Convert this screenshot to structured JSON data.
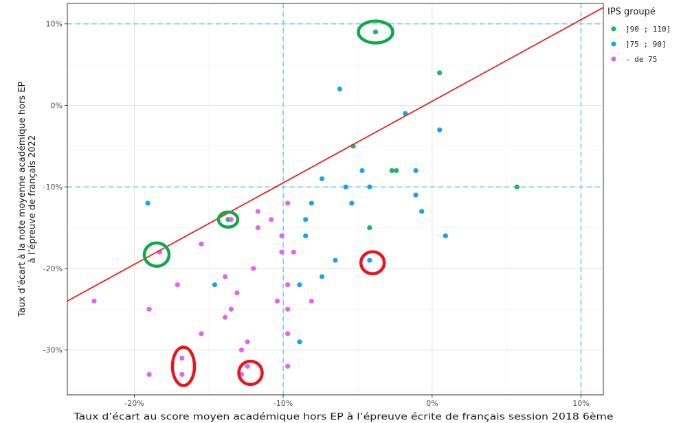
{
  "chart_data": {
    "type": "scatter",
    "xlabel": "Taux d’écart au score moyen académique hors EP à l’épreuve écrite de français session 2018 6ème",
    "ylabel_lines": [
      "Taux d’écart à la note moyenne académique hors EP",
      "à l’épreuve de français 2022"
    ],
    "xlim": [
      -0.245,
      0.115
    ],
    "ylim": [
      -0.355,
      0.125
    ],
    "x_ticks": [
      {
        "value": -0.2,
        "label": "-20%"
      },
      {
        "value": -0.1,
        "label": "-10%"
      },
      {
        "value": 0.0,
        "label": "0%"
      },
      {
        "value": 0.1,
        "label": "10%"
      }
    ],
    "y_ticks": [
      {
        "value": 0.1,
        "label": "10%"
      },
      {
        "value": 0.0,
        "label": "0%"
      },
      {
        "value": -0.1,
        "label": "-10%"
      },
      {
        "value": -0.2,
        "label": "-20%"
      },
      {
        "value": -0.3,
        "label": "-30%"
      }
    ],
    "grid": true,
    "reference_lines": {
      "x": [
        -0.1,
        0.1
      ],
      "y": [
        -0.1,
        0.1
      ],
      "color": "#7fc8f8",
      "style": "dashed"
    },
    "regression_line": {
      "slope": 1.0,
      "intercept": 0.005,
      "color": "#ee1c1c"
    },
    "legend": {
      "title": "IPS groupé",
      "position": "top-right"
    },
    "series": [
      {
        "name": "]90 ; 110]",
        "color": "#1fb46e",
        "points": [
          [
            -0.038,
            0.09
          ],
          [
            0.005,
            0.04
          ],
          [
            -0.053,
            -0.05
          ],
          [
            -0.027,
            -0.08
          ],
          [
            -0.024,
            -0.08
          ],
          [
            0.057,
            -0.1
          ],
          [
            -0.042,
            -0.15
          ],
          [
            -0.137,
            -0.14
          ]
        ]
      },
      {
        "name": "]75 ; 90]",
        "color": "#1aa3ec",
        "points": [
          [
            -0.062,
            0.02
          ],
          [
            -0.018,
            -0.01
          ],
          [
            0.005,
            -0.03
          ],
          [
            -0.047,
            -0.08
          ],
          [
            -0.011,
            -0.08
          ],
          [
            -0.074,
            -0.09
          ],
          [
            -0.058,
            -0.1
          ],
          [
            -0.042,
            -0.1
          ],
          [
            -0.011,
            -0.11
          ],
          [
            -0.191,
            -0.12
          ],
          [
            -0.054,
            -0.12
          ],
          [
            -0.081,
            -0.12
          ],
          [
            -0.007,
            -0.13
          ],
          [
            -0.085,
            -0.14
          ],
          [
            -0.085,
            -0.16
          ],
          [
            0.009,
            -0.16
          ],
          [
            -0.065,
            -0.19
          ],
          [
            -0.042,
            -0.19
          ],
          [
            -0.074,
            -0.21
          ],
          [
            -0.089,
            -0.22
          ],
          [
            -0.146,
            -0.22
          ],
          [
            -0.089,
            -0.29
          ]
        ]
      },
      {
        "name": "- de 75",
        "color": "#e065f0",
        "points": [
          [
            -0.117,
            -0.13
          ],
          [
            -0.097,
            -0.12
          ],
          [
            -0.108,
            -0.14
          ],
          [
            -0.117,
            -0.15
          ],
          [
            -0.135,
            -0.14
          ],
          [
            -0.101,
            -0.16
          ],
          [
            -0.155,
            -0.17
          ],
          [
            -0.183,
            -0.18
          ],
          [
            -0.101,
            -0.18
          ],
          [
            -0.093,
            -0.18
          ],
          [
            -0.12,
            -0.2
          ],
          [
            -0.139,
            -0.21
          ],
          [
            -0.171,
            -0.22
          ],
          [
            -0.097,
            -0.22
          ],
          [
            -0.131,
            -0.23
          ],
          [
            -0.081,
            -0.24
          ],
          [
            -0.104,
            -0.24
          ],
          [
            -0.227,
            -0.24
          ],
          [
            -0.19,
            -0.25
          ],
          [
            -0.135,
            -0.25
          ],
          [
            -0.097,
            -0.25
          ],
          [
            -0.139,
            -0.26
          ],
          [
            -0.155,
            -0.28
          ],
          [
            -0.097,
            -0.28
          ],
          [
            -0.124,
            -0.29
          ],
          [
            -0.128,
            -0.3
          ],
          [
            -0.124,
            -0.32
          ],
          [
            -0.097,
            -0.32
          ],
          [
            -0.168,
            -0.31
          ],
          [
            -0.168,
            -0.33
          ],
          [
            -0.128,
            -0.33
          ],
          [
            -0.19,
            -0.33
          ]
        ]
      }
    ],
    "highlight_ellipses": [
      {
        "color": "#10a84a",
        "cx": -0.038,
        "cy": 0.09,
        "rx_px": 25,
        "ry_px": 16
      },
      {
        "color": "#10a84a",
        "cx": -0.137,
        "cy": -0.14,
        "rx_px": 14,
        "ry_px": 11
      },
      {
        "color": "#10a84a",
        "cx": -0.185,
        "cy": -0.183,
        "rx_px": 18,
        "ry_px": 17
      },
      {
        "color": "#e8141e",
        "cx": -0.04,
        "cy": -0.193,
        "rx_px": 17,
        "ry_px": 16
      },
      {
        "color": "#e8141e",
        "cx": -0.167,
        "cy": -0.32,
        "rx_px": 16,
        "ry_px": 28
      },
      {
        "color": "#e8141e",
        "cx": -0.122,
        "cy": -0.328,
        "rx_px": 17,
        "ry_px": 17
      }
    ]
  }
}
